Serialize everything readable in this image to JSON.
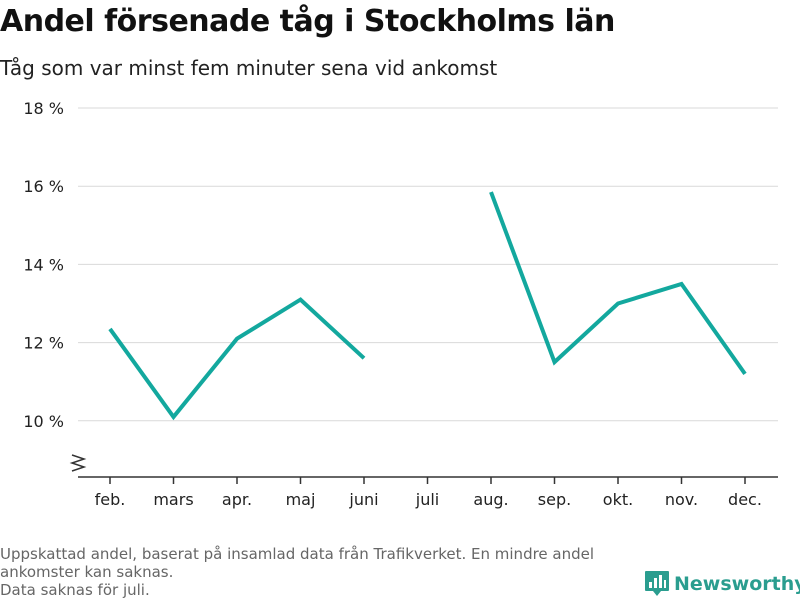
{
  "header": {
    "title": "Andel försenade tåg i Stockholms län",
    "subtitle": "Tåg som var minst fem minuter sena vid ankomst"
  },
  "chart_data": {
    "type": "line",
    "categories": [
      "feb.",
      "mars",
      "apr.",
      "maj",
      "juni",
      "juli",
      "aug.",
      "sep.",
      "okt.",
      "nov.",
      "dec."
    ],
    "series": [
      {
        "values": [
          12.35,
          10.1,
          12.1,
          13.1,
          11.6,
          null,
          15.85,
          11.5,
          13.0,
          13.5,
          11.2
        ]
      }
    ],
    "yticks": [
      10,
      12,
      14,
      16,
      18
    ],
    "ytick_labels": [
      "10 %",
      "12 %",
      "14 %",
      "16 %",
      "18 %"
    ],
    "ylim": [
      8.6,
      18
    ],
    "axis_break": true,
    "grid": true,
    "line_color": "#13a89e"
  },
  "footer": {
    "note_line1": "Uppskattad andel, baserat på insamlad data från Trafikverket. En mindre andel ankomster kan saknas.",
    "note_line2": "Data saknas för juli."
  },
  "brand": {
    "name": "Newsworthy",
    "icon": "newsworthy-logo-icon",
    "color": "#2a9d8f"
  }
}
